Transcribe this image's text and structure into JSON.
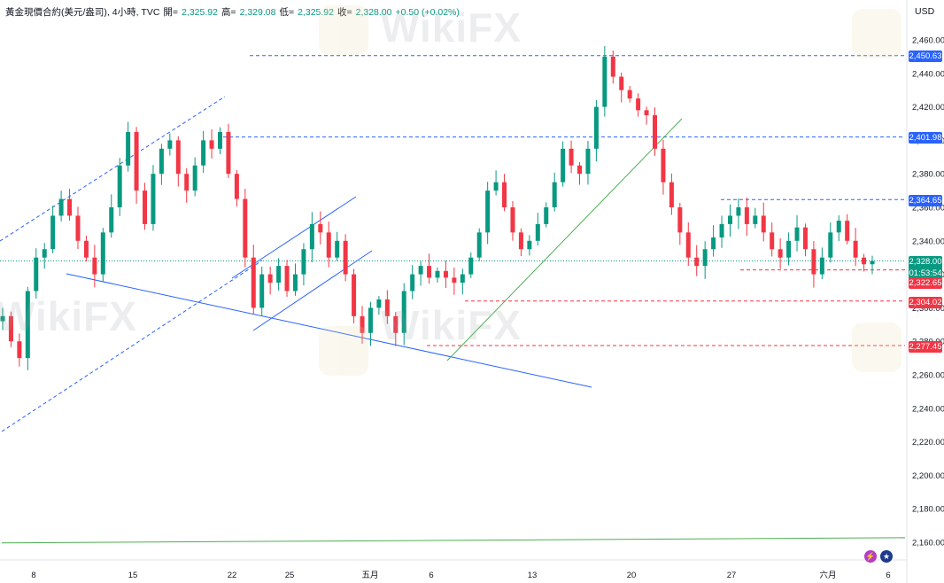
{
  "legend": {
    "symbol": "黃金現價合約(美元/盎司), 4小時, TVC",
    "open_label": "開=",
    "open": "2,325.92",
    "high_label": "高=",
    "high": "2,329.08",
    "low_label": "低=",
    "low": "2,325.92",
    "close_label": "收=",
    "close": "2,328.00",
    "change": "+0.50 (+0.02%)"
  },
  "axis": {
    "currency": "USD"
  },
  "watermark": "WikiFX",
  "badges": {
    "h1": "2,450.63",
    "h2": "2,401.98",
    "h3": "2,364.65",
    "price": "2,328.00",
    "countdown": "01:53:54",
    "r1": "2,322.65",
    "r2": "2,304.02",
    "r3": "2,277.45"
  },
  "chart_data": {
    "type": "candlestick",
    "ylim": [
      2150,
      2470
    ],
    "y_ticks": [
      2160,
      2180,
      2200,
      2220,
      2240,
      2260,
      2280,
      2300,
      2320,
      2340,
      2360,
      2380,
      2400,
      2420,
      2440,
      2460
    ],
    "y_tick_labels": [
      "2,160.00",
      "2,180.00",
      "2,200.00",
      "2,220.00",
      "2,240.00",
      "2,260.00",
      "2,280.00",
      "2,300.00",
      "2,320.00",
      "2,340.00",
      "2,360.00",
      "2,380.00",
      "2,400.00",
      "2,420.00",
      "2,440.00",
      "2,460.00"
    ],
    "x_ticks": [
      "8",
      "15",
      "22",
      "25",
      "五月",
      "6",
      "13",
      "20",
      "27",
      "六月",
      "6"
    ],
    "horizontal_levels": [
      {
        "value": 2450.63,
        "color": "#2962ff",
        "style": "dashed"
      },
      {
        "value": 2401.98,
        "color": "#2962ff",
        "style": "dashed"
      },
      {
        "value": 2364.65,
        "color": "#2962ff",
        "style": "dashed"
      },
      {
        "value": 2322.65,
        "color": "#f23645",
        "style": "dashed"
      },
      {
        "value": 2304.02,
        "color": "#f23645",
        "style": "dashed"
      },
      {
        "value": 2277.45,
        "color": "#f23645",
        "style": "dashed"
      },
      {
        "value": 2328.0,
        "color": "#089981",
        "style": "dotted"
      }
    ],
    "long_trendline": {
      "color": "#4caf50",
      "from_value": 2159.6,
      "to_value": 2162.7
    },
    "close_path": [
      2295,
      2280,
      2270,
      2310,
      2330,
      2335,
      2355,
      2365,
      2355,
      2340,
      2330,
      2320,
      2345,
      2360,
      2385,
      2405,
      2370,
      2350,
      2380,
      2395,
      2400,
      2380,
      2370,
      2385,
      2400,
      2395,
      2405,
      2380,
      2365,
      2330,
      2300,
      2320,
      2315,
      2325,
      2310,
      2320,
      2335,
      2350,
      2345,
      2330,
      2340,
      2320,
      2295,
      2285,
      2300,
      2305,
      2295,
      2285,
      2310,
      2320,
      2325,
      2318,
      2322,
      2318,
      2315,
      2320,
      2330,
      2345,
      2370,
      2375,
      2360,
      2345,
      2335,
      2340,
      2350,
      2360,
      2375,
      2395,
      2385,
      2380,
      2395,
      2420,
      2450,
      2438,
      2430,
      2425,
      2418,
      2415,
      2395,
      2375,
      2360,
      2345,
      2330,
      2325,
      2335,
      2342,
      2350,
      2355,
      2360,
      2350,
      2355,
      2345,
      2335,
      2330,
      2340,
      2348,
      2335,
      2320,
      2330,
      2345,
      2352,
      2340,
      2330,
      2326,
      2328
    ]
  }
}
